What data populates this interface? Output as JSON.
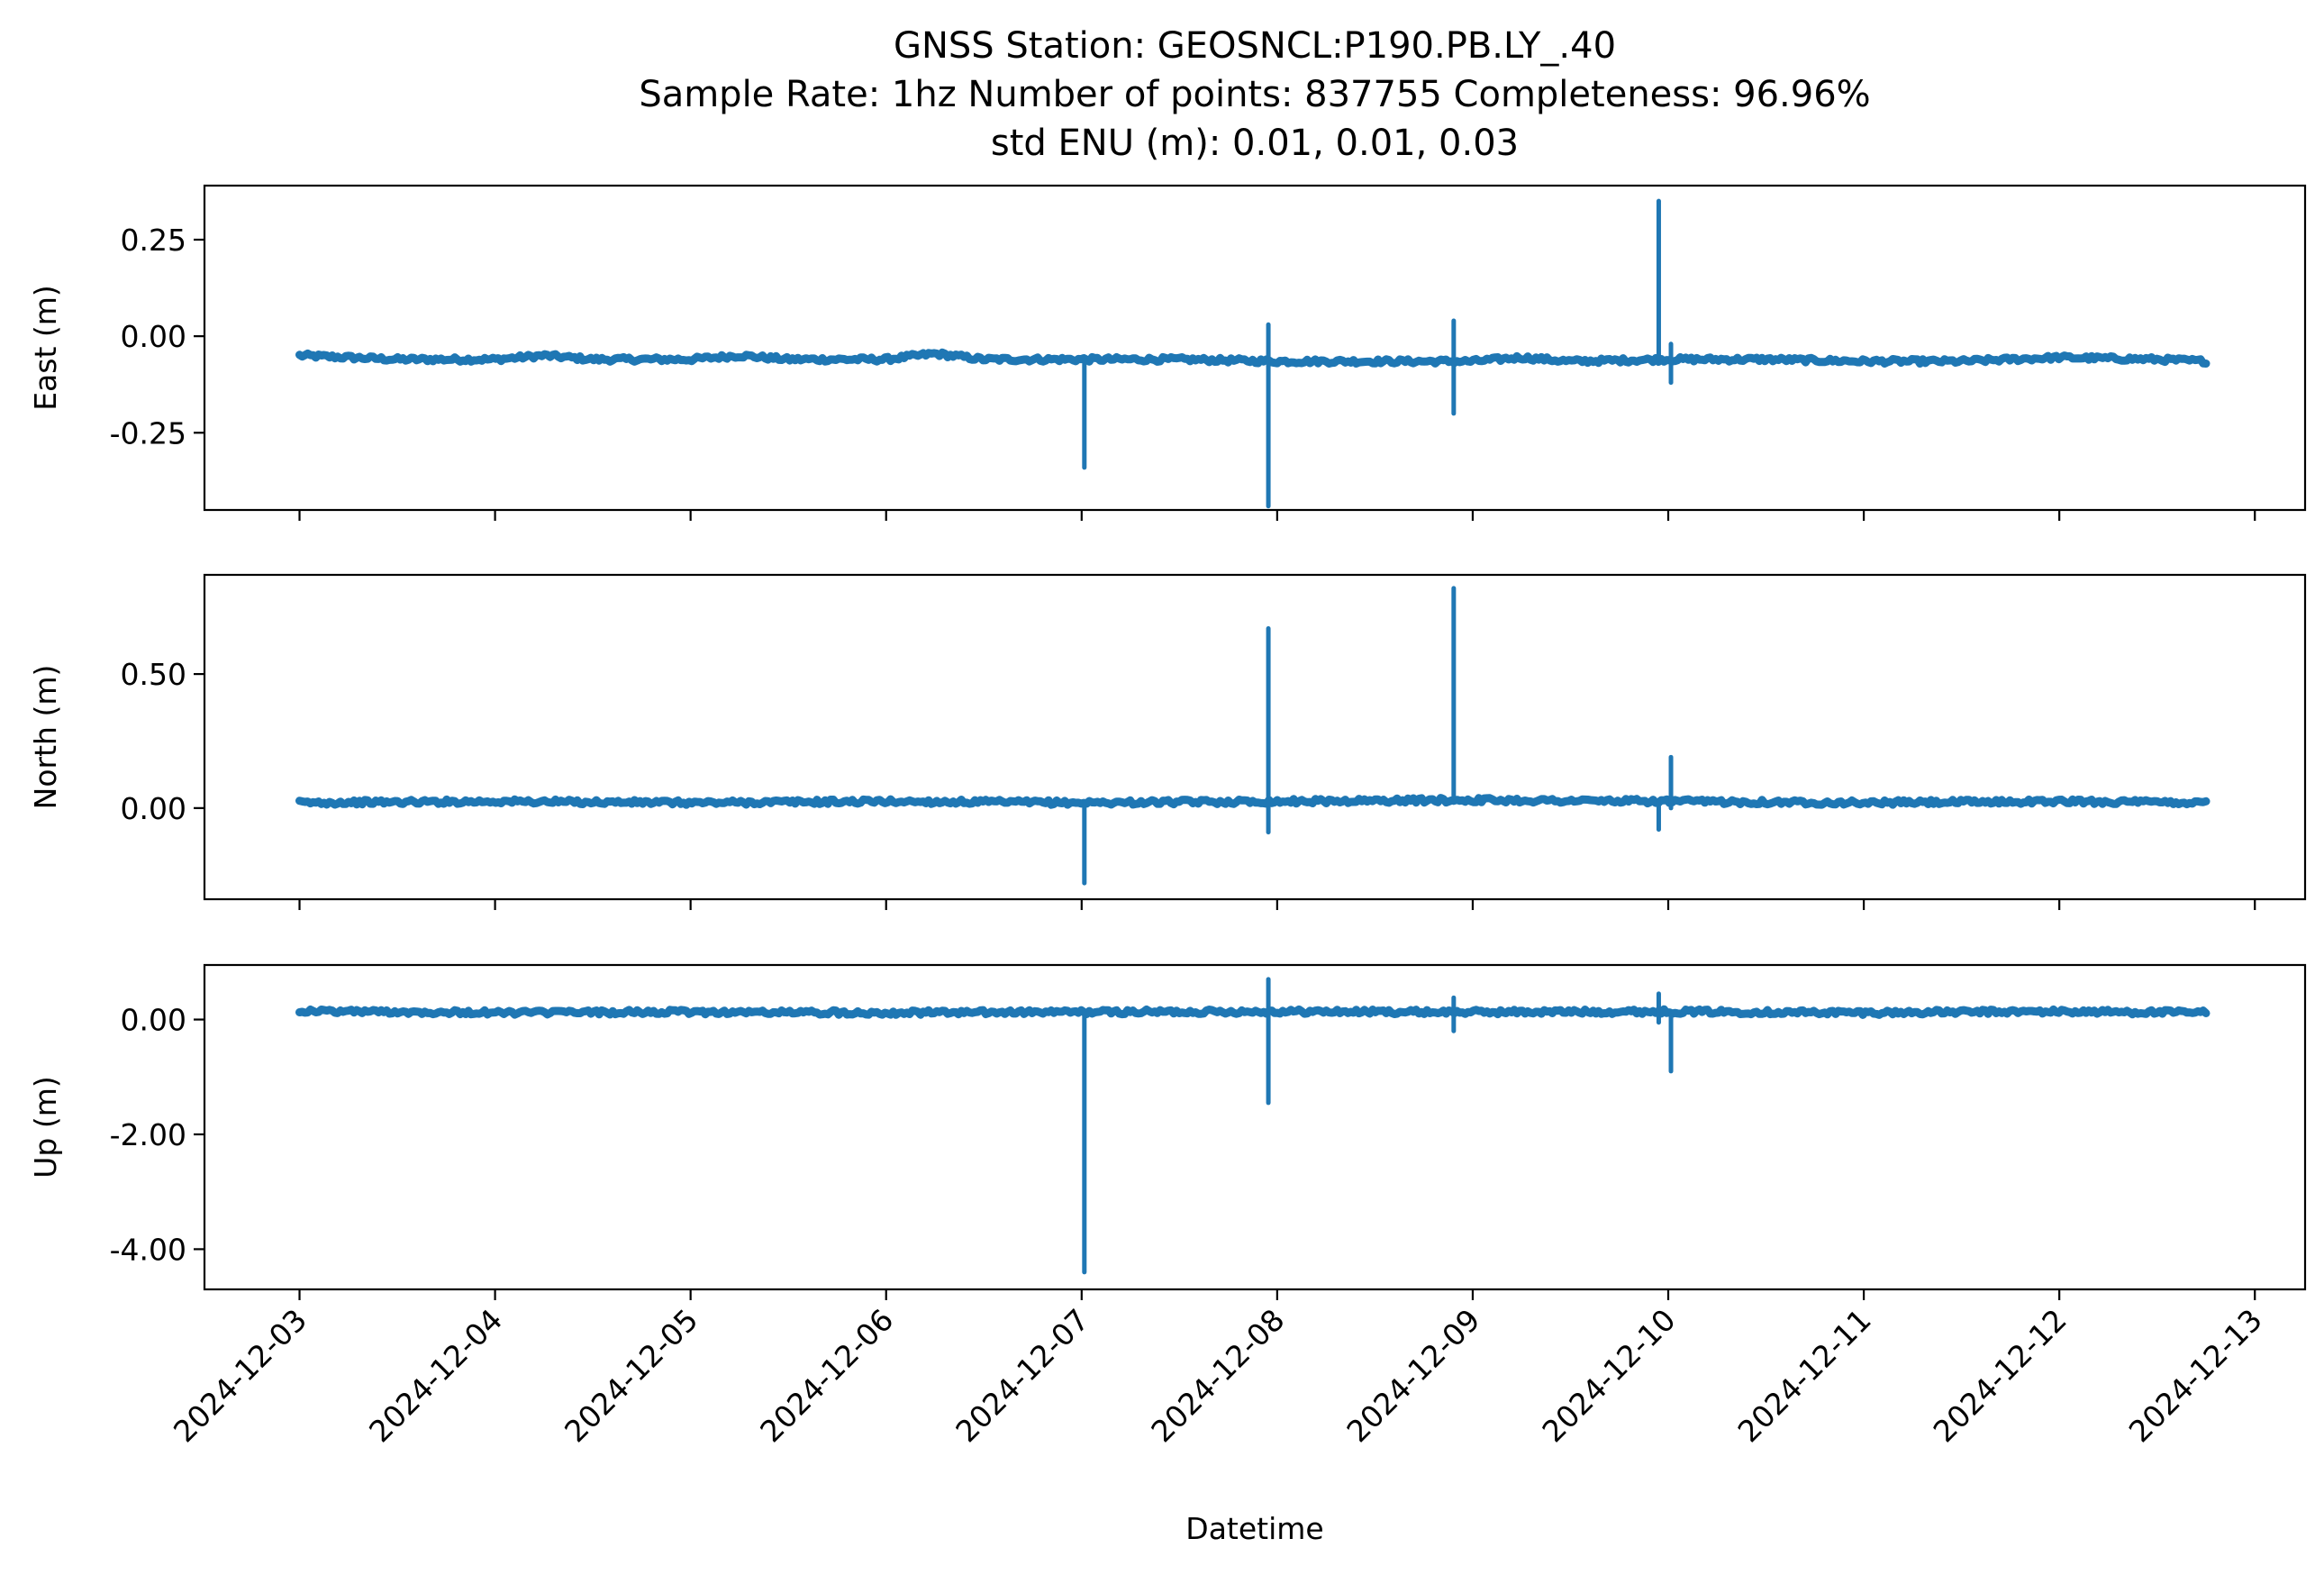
{
  "chart_data": {
    "type": "line",
    "title_lines": [
      "GNSS Station: GEOSNCL:P190.PB.LY_.40",
      "Sample Rate: 1hz   Number of points: 837755    Completeness:  96.96%",
      "std ENU (m):  0.01, 0.01, 0.03"
    ],
    "xlabel": "Datetime",
    "x_ticks": [
      "2024-12-03",
      "2024-12-04",
      "2024-12-05",
      "2024-12-06",
      "2024-12-07",
      "2024-12-08",
      "2024-12-09",
      "2024-12-10",
      "2024-12-11",
      "2024-12-12",
      "2024-12-13"
    ],
    "xlim": [
      "2024-12-02T12:20",
      "2024-12-13T06:10"
    ],
    "x_data_range": [
      "2024-12-03T00:00",
      "2024-12-12T18:00"
    ],
    "color": "#1f77b4",
    "panels": [
      {
        "name": "east",
        "ylabel": "East (m)",
        "ylim": [
          -0.45,
          0.39
        ],
        "y_ticks": [
          0.25,
          0.0,
          -0.25
        ],
        "y_tick_labels": [
          "0.25",
          "0.00",
          "-0.25"
        ],
        "baseline_x": [
          "2024-12-03",
          "2024-12-03T12:00",
          "2024-12-04",
          "2024-12-04T06:00",
          "2024-12-04T12:00",
          "2024-12-05",
          "2024-12-05T06:00",
          "2024-12-05T12:00",
          "2024-12-06",
          "2024-12-06T06:00",
          "2024-12-06T12:00",
          "2024-12-07",
          "2024-12-07T12:00",
          "2024-12-08",
          "2024-12-08T12:00",
          "2024-12-09",
          "2024-12-09T06:00",
          "2024-12-09T12:00",
          "2024-12-10",
          "2024-12-10T12:00",
          "2024-12-11",
          "2024-12-11T12:00",
          "2024-12-12",
          "2024-12-12T12:00",
          "2024-12-12T18:00"
        ],
        "baseline_y": [
          -0.05,
          -0.06,
          -0.06,
          -0.05,
          -0.06,
          -0.06,
          -0.05,
          -0.06,
          -0.06,
          -0.045,
          -0.06,
          -0.06,
          -0.06,
          -0.065,
          -0.065,
          -0.065,
          -0.055,
          -0.065,
          -0.06,
          -0.06,
          -0.065,
          -0.065,
          -0.055,
          -0.06,
          -0.065
        ],
        "spikes": [
          {
            "x": "2024-12-07T00:20",
            "min": -0.34,
            "max": -0.06
          },
          {
            "x": "2024-12-07T22:55",
            "min": -0.44,
            "max": 0.03
          },
          {
            "x": "2024-12-08T21:40",
            "min": -0.2,
            "max": 0.04
          },
          {
            "x": "2024-12-09T22:50",
            "min": -0.06,
            "max": 0.35
          },
          {
            "x": "2024-12-10T00:20",
            "min": -0.12,
            "max": -0.02
          }
        ]
      },
      {
        "name": "north",
        "ylabel": "North (m)",
        "ylim": [
          -0.34,
          0.87
        ],
        "y_ticks": [
          0.5,
          0.0
        ],
        "y_tick_labels": [
          "0.50",
          "0.00"
        ],
        "baseline_x": [
          "2024-12-03",
          "2024-12-04",
          "2024-12-05",
          "2024-12-06",
          "2024-12-07",
          "2024-12-08",
          "2024-12-09",
          "2024-12-10",
          "2024-12-11",
          "2024-12-12",
          "2024-12-12T18:00"
        ],
        "baseline_y": [
          0.02,
          0.025,
          0.02,
          0.025,
          0.02,
          0.025,
          0.03,
          0.025,
          0.02,
          0.025,
          0.02
        ],
        "spikes": [
          {
            "x": "2024-12-07T00:20",
            "min": -0.28,
            "max": 0.02
          },
          {
            "x": "2024-12-07T22:55",
            "min": -0.09,
            "max": 0.67
          },
          {
            "x": "2024-12-08T21:40",
            "min": 0.02,
            "max": 0.82
          },
          {
            "x": "2024-12-09T22:50",
            "min": -0.08,
            "max": 0.03
          },
          {
            "x": "2024-12-10T00:20",
            "min": 0.0,
            "max": 0.19
          }
        ]
      },
      {
        "name": "up",
        "ylabel": "Up (m)",
        "ylim": [
          -4.7,
          0.95
        ],
        "y_ticks": [
          0.0,
          -2.0,
          -4.0
        ],
        "y_tick_labels": [
          "0.00",
          "-2.00",
          "-4.00"
        ],
        "baseline_x": [
          "2024-12-03",
          "2024-12-04",
          "2024-12-05",
          "2024-12-06",
          "2024-12-07",
          "2024-12-08",
          "2024-12-09",
          "2024-12-10",
          "2024-12-11",
          "2024-12-12",
          "2024-12-12T18:00"
        ],
        "baseline_y": [
          0.15,
          0.12,
          0.13,
          0.12,
          0.13,
          0.14,
          0.13,
          0.14,
          0.12,
          0.14,
          0.12
        ],
        "spikes": [
          {
            "x": "2024-12-07T00:20",
            "min": -4.4,
            "max": 0.12
          },
          {
            "x": "2024-12-07T22:55",
            "min": -1.45,
            "max": 0.7
          },
          {
            "x": "2024-12-08T21:40",
            "min": -0.2,
            "max": 0.38
          },
          {
            "x": "2024-12-09T22:50",
            "min": -0.05,
            "max": 0.45
          },
          {
            "x": "2024-12-10T00:20",
            "min": -0.9,
            "max": 0.1
          }
        ]
      }
    ]
  }
}
